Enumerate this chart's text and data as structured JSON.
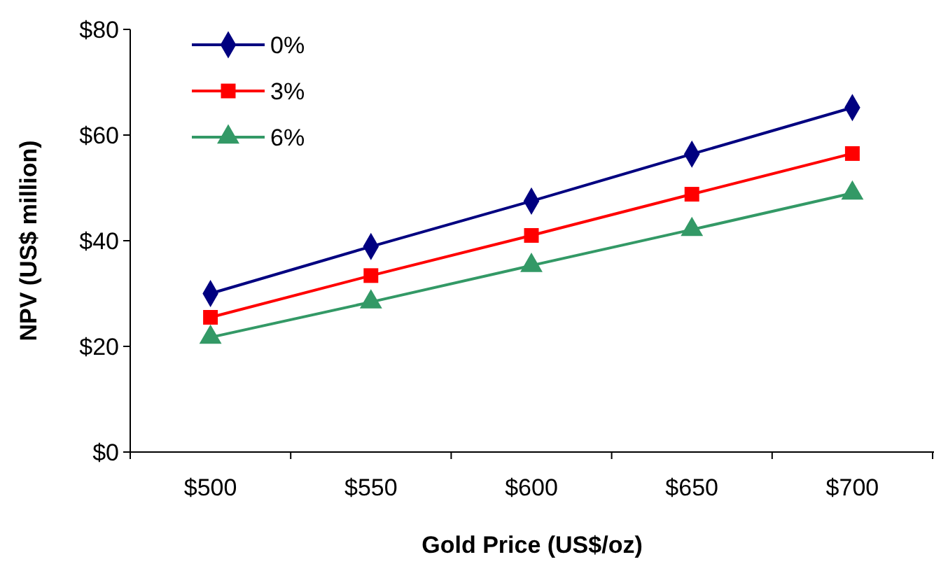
{
  "chart_data": {
    "type": "line",
    "xlabel": "Gold Price (US$/oz)",
    "ylabel": "NPV (US$ million)",
    "categories": [
      "$500",
      "$550",
      "$600",
      "$650",
      "$700"
    ],
    "series": [
      {
        "name": "0%",
        "color": "#000080",
        "marker": "diamond",
        "values": [
          30.0,
          38.9,
          47.5,
          56.4,
          65.2
        ]
      },
      {
        "name": "3%",
        "color": "#ff0000",
        "marker": "square",
        "values": [
          25.5,
          33.4,
          41.0,
          48.8,
          56.5
        ]
      },
      {
        "name": "6%",
        "color": "#339966",
        "marker": "triangle",
        "values": [
          21.7,
          28.4,
          35.3,
          42.1,
          49.0
        ]
      }
    ],
    "ylim": [
      0,
      80
    ],
    "yticks": [
      {
        "value": 0,
        "label": "$0"
      },
      {
        "value": 20,
        "label": "$20"
      },
      {
        "value": 40,
        "label": "$40"
      },
      {
        "value": 60,
        "label": "$60"
      },
      {
        "value": 80,
        "label": "$80"
      }
    ],
    "legend": "top left",
    "grid": false
  }
}
